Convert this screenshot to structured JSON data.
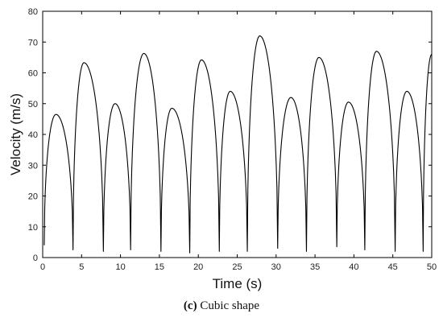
{
  "chart_data": {
    "type": "line",
    "title": "",
    "xlabel": "Time (s)",
    "ylabel": "Velocity (m/s)",
    "xlim": [
      0,
      50
    ],
    "ylim": [
      0,
      80
    ],
    "xticks": [
      0,
      5,
      10,
      15,
      20,
      25,
      30,
      35,
      40,
      45,
      50
    ],
    "yticks": [
      0,
      10,
      20,
      30,
      40,
      50,
      60,
      70,
      80
    ],
    "grid": false,
    "legend": "none",
    "series": [
      {
        "color": "#000000",
        "min_points": [
          [
            0.2,
            4
          ],
          [
            3.9,
            2.5
          ],
          [
            7.8,
            2
          ],
          [
            11.3,
            2.5
          ],
          [
            15.2,
            2
          ],
          [
            18.9,
            1.5
          ],
          [
            22.7,
            2
          ],
          [
            26.3,
            2
          ],
          [
            30.2,
            3
          ],
          [
            33.9,
            2
          ],
          [
            37.8,
            3.5
          ],
          [
            41.4,
            2.5
          ],
          [
            45.3,
            2
          ],
          [
            48.9,
            2
          ]
        ],
        "peak_points": [
          [
            1.7,
            46.5
          ],
          [
            5.3,
            63.3
          ],
          [
            9.3,
            50
          ],
          [
            13.0,
            66.3
          ],
          [
            16.6,
            48.5
          ],
          [
            20.4,
            64.2
          ],
          [
            24.1,
            54
          ],
          [
            27.9,
            72
          ],
          [
            31.9,
            52
          ],
          [
            35.5,
            65
          ],
          [
            39.3,
            50.5
          ],
          [
            42.9,
            67
          ],
          [
            46.8,
            54
          ],
          [
            50.0,
            66
          ]
        ]
      }
    ]
  },
  "caption": {
    "label": "(c)",
    "text": " Cubic shape"
  }
}
